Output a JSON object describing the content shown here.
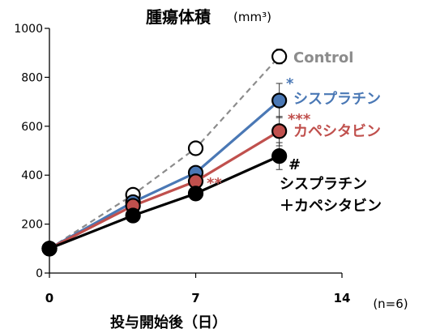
{
  "chart_data": {
    "type": "line",
    "title": "腫瘍体積",
    "title_unit": "(mm³)",
    "xlabel": "投与開始後（日）",
    "n_label": "(n=6)",
    "x_ticks": [
      "0",
      "7",
      "14"
    ],
    "y_ticks": [
      "0",
      "200",
      "400",
      "600",
      "800",
      "1000"
    ],
    "xlim": [
      0,
      14
    ],
    "ylim": [
      0,
      1000
    ],
    "grid": false,
    "series": [
      {
        "name": "Control",
        "color": "#8c8c8c",
        "dashed": true,
        "marker": "open-circle",
        "x": [
          0,
          4,
          7,
          11
        ],
        "y": [
          100,
          320,
          510,
          885
        ],
        "err": [
          0,
          10,
          15,
          30
        ],
        "significance": ""
      },
      {
        "name": "シスプラチン",
        "color": "#4a78b5",
        "dashed": false,
        "marker": "filled-circle",
        "x": [
          0,
          4,
          7,
          11
        ],
        "y": [
          100,
          290,
          410,
          705
        ],
        "err": [
          0,
          10,
          15,
          70
        ],
        "significance": "*"
      },
      {
        "name": "カペシタビン",
        "color": "#c0504d",
        "dashed": false,
        "marker": "filled-circle",
        "x": [
          0,
          4,
          7,
          11
        ],
        "y": [
          100,
          275,
          375,
          580
        ],
        "err": [
          0,
          10,
          15,
          60
        ],
        "significance": "***"
      },
      {
        "name": "シスプラチン＋カペシタビン",
        "label_lines": [
          "シスプラチン",
          "＋カペシタビン"
        ],
        "color": "#000000",
        "dashed": false,
        "marker": "filled-circle",
        "x": [
          0,
          4,
          7,
          11
        ],
        "y": [
          100,
          235,
          325,
          478
        ],
        "err": [
          0,
          10,
          15,
          55
        ],
        "significance": "#"
      }
    ],
    "annotations": [
      {
        "text": "**",
        "color": "#c0504d",
        "near": "day 7"
      }
    ]
  }
}
